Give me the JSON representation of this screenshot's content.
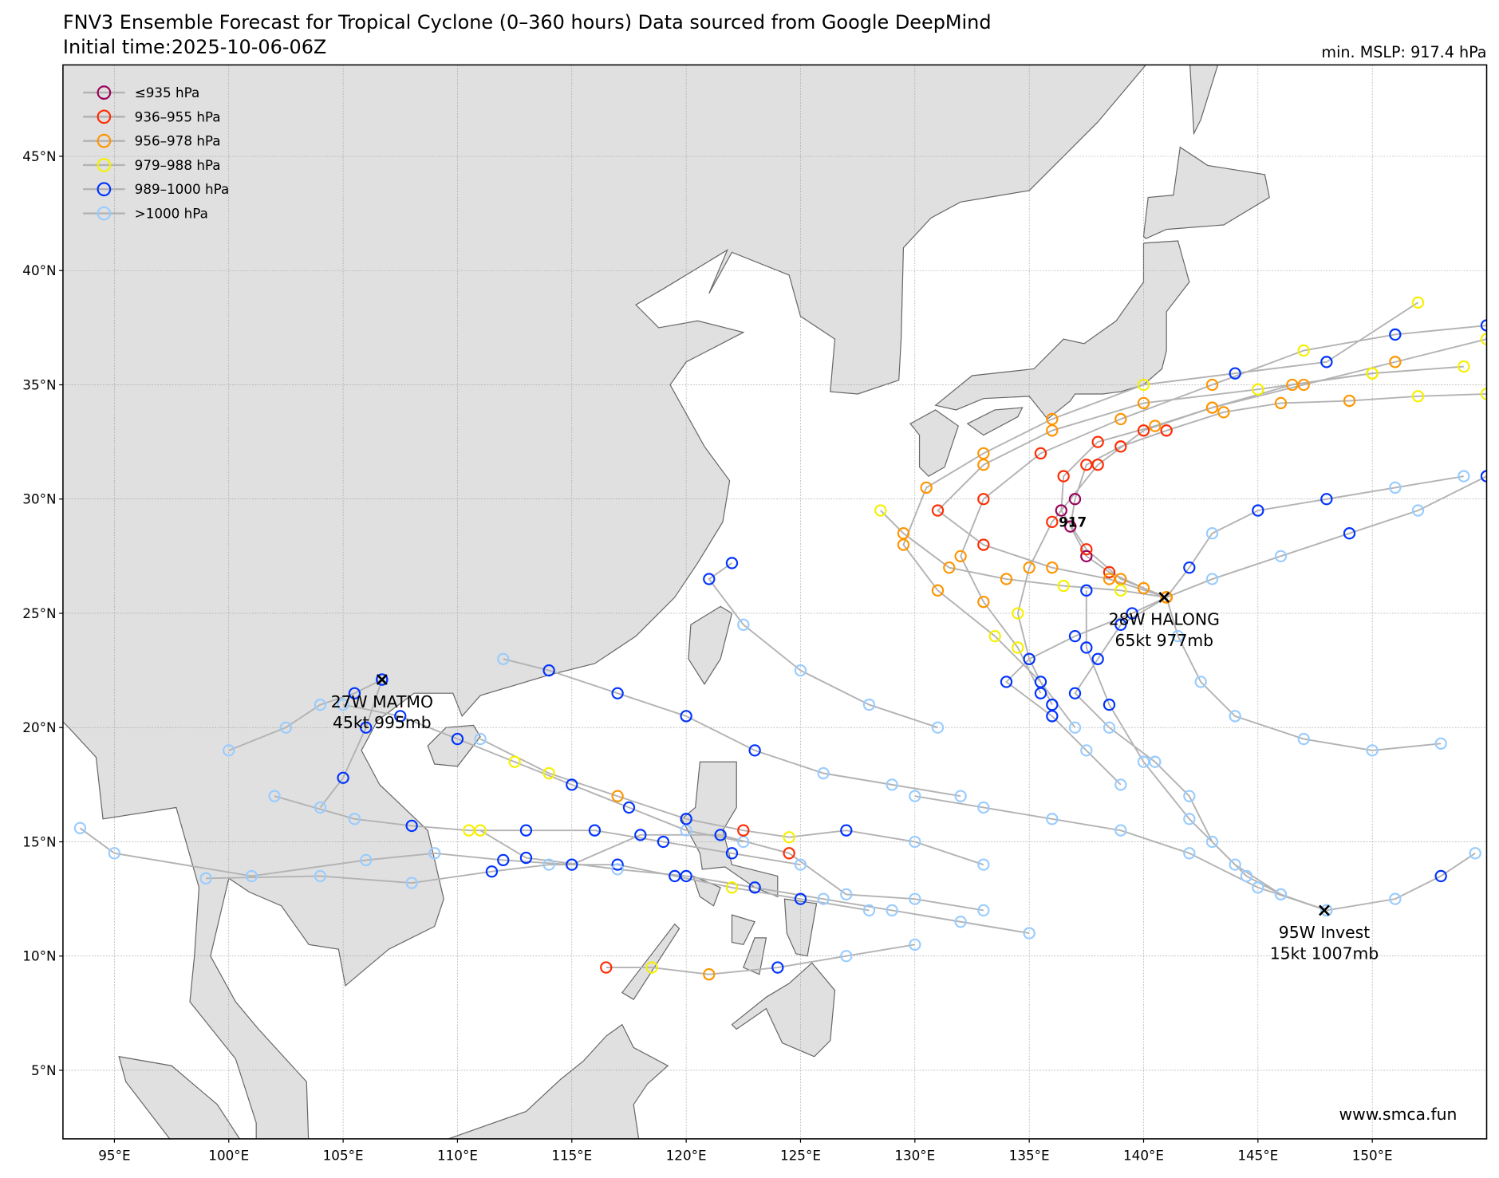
{
  "header": {
    "title": "FNV3 Ensemble Forecast for Tropical Cyclone (0–360 hours) Data sourced from Google DeepMind",
    "init_time": "Initial time:2025-10-06-06Z",
    "min_mslp": "min. MSLP: 917.4 hPa"
  },
  "watermark": "www.smca.fun",
  "chart_data": {
    "type": "map-tracks",
    "projection": "equirectangular",
    "lon_range": [
      92.75,
      155
    ],
    "lat_range": [
      2,
      49
    ],
    "grid": true,
    "legend_placement": "top-left",
    "x_ticks": [
      "95°E",
      "100°E",
      "105°E",
      "110°E",
      "115°E",
      "120°E",
      "125°E",
      "130°E",
      "135°E",
      "140°E",
      "145°E",
      "150°E"
    ],
    "x_tick_values": [
      95,
      100,
      105,
      110,
      115,
      120,
      125,
      130,
      135,
      140,
      145,
      150
    ],
    "y_ticks": [
      "5°N",
      "10°N",
      "15°N",
      "20°N",
      "25°N",
      "30°N",
      "35°N",
      "40°N",
      "45°N"
    ],
    "y_tick_values": [
      5,
      10,
      15,
      20,
      25,
      30,
      35,
      40,
      45
    ],
    "legend": [
      {
        "label": "≤935 hPa",
        "color": "#99005a",
        "max": 935
      },
      {
        "label": "936–955 hPa",
        "color": "#ff2a00",
        "max": 955
      },
      {
        "label": "956–978 hPa",
        "color": "#ff9500",
        "max": 978
      },
      {
        "label": "979–988 hPa",
        "color": "#f5f000",
        "max": 988
      },
      {
        "label": "989–1000 hPa",
        "color": "#0033ff",
        "max": 1000
      },
      {
        "label": ">1000 hPa",
        "color": "#99ccff",
        "max": 9999
      }
    ],
    "track_color": "#b3b3b3",
    "min_pressure_label": {
      "text": "917",
      "lon": 136.9,
      "lat": 29.0
    },
    "storms": [
      {
        "name": "27W MATMO",
        "info": "45kt 995mb",
        "lon": 106.7,
        "lat": 22.1
      },
      {
        "name": "28W HALONG",
        "info": "65kt 977mb",
        "lon": 140.9,
        "lat": 25.7
      },
      {
        "name": "95W Invest",
        "info": "15kt 1007mb",
        "lon": 147.9,
        "lat": 12.0
      }
    ],
    "tracks": [
      [
        [
          141,
          25.7,
          977
        ],
        [
          140,
          26.1,
          965
        ],
        [
          138.5,
          26.8,
          950
        ],
        [
          137.5,
          27.5,
          935
        ],
        [
          136.8,
          28.8,
          920
        ],
        [
          137,
          30,
          925
        ],
        [
          137.5,
          31.5,
          940
        ],
        [
          139,
          32.3,
          950
        ],
        [
          141,
          33,
          955
        ],
        [
          143.5,
          33.8,
          965
        ],
        [
          146,
          34.2,
          970
        ],
        [
          149,
          34.3,
          975
        ],
        [
          152,
          34.5,
          980
        ],
        [
          155,
          34.6,
          985
        ]
      ],
      [
        [
          141,
          25.7,
          977
        ],
        [
          139,
          26.5,
          960
        ],
        [
          137.5,
          27.8,
          940
        ],
        [
          136.4,
          29.5,
          930
        ],
        [
          136.5,
          31,
          940
        ],
        [
          138,
          32.5,
          950
        ],
        [
          140.5,
          33.2,
          958
        ],
        [
          143,
          34,
          968
        ],
        [
          146.5,
          35,
          975
        ],
        [
          150,
          35.5,
          980
        ],
        [
          154,
          35.8,
          985
        ]
      ],
      [
        [
          141,
          25.7,
          977
        ],
        [
          138.5,
          26.5,
          970
        ],
        [
          136,
          27,
          960
        ],
        [
          133,
          28,
          950
        ],
        [
          131,
          29.5,
          955
        ],
        [
          133,
          31.5,
          965
        ],
        [
          136,
          33,
          972
        ],
        [
          140,
          34.2,
          978
        ],
        [
          145,
          34.8,
          983
        ],
        [
          150,
          35.5,
          988
        ]
      ],
      [
        [
          141,
          25.7,
          977
        ],
        [
          139,
          26,
          985
        ],
        [
          136.5,
          26.2,
          980
        ],
        [
          134,
          26.5,
          970
        ],
        [
          131.5,
          27,
          965
        ],
        [
          129.5,
          28.5,
          975
        ],
        [
          128.5,
          29.5,
          985
        ]
      ],
      [
        [
          141,
          25.7,
          977
        ],
        [
          139,
          24.5,
          992
        ],
        [
          138,
          23,
          996
        ],
        [
          137,
          21.5,
          998
        ],
        [
          138.5,
          20,
          1002
        ],
        [
          140.5,
          18.5,
          1004
        ],
        [
          142,
          17,
          1006
        ],
        [
          143,
          15,
          1007
        ],
        [
          144.5,
          13.5,
          1008
        ],
        [
          146,
          12.7,
          1008
        ]
      ],
      [
        [
          141,
          25.7,
          977
        ],
        [
          139.5,
          25,
          994
        ],
        [
          137,
          24,
          990
        ],
        [
          135,
          23,
          985
        ],
        [
          134,
          22,
          993
        ],
        [
          136,
          20.5,
          997
        ],
        [
          137.5,
          19,
          1003
        ],
        [
          139,
          17.5,
          1005
        ]
      ],
      [
        [
          141,
          25.7,
          977
        ],
        [
          142,
          27,
          996
        ],
        [
          143,
          28.5,
          1002
        ],
        [
          145,
          29.5,
          995
        ],
        [
          148,
          30,
          1000
        ],
        [
          151,
          30.5,
          1003
        ],
        [
          154,
          31,
          1004
        ]
      ],
      [
        [
          141,
          25.7,
          977
        ],
        [
          143,
          26.5,
          1002
        ],
        [
          146,
          27.5,
          1003
        ],
        [
          149,
          28.5,
          994
        ],
        [
          152,
          29.5,
          1003
        ],
        [
          155,
          31,
          1000
        ]
      ],
      [
        [
          141,
          25.7,
          977
        ],
        [
          141.5,
          24,
          1004
        ],
        [
          142.5,
          22,
          1003
        ],
        [
          144,
          20.5,
          1003
        ],
        [
          147,
          19.5,
          1004
        ],
        [
          150,
          19,
          1005
        ],
        [
          153,
          19.3,
          1005
        ]
      ],
      [
        [
          148,
          12,
          1007
        ],
        [
          146,
          12.7,
          1006
        ],
        [
          144,
          14,
          1004
        ],
        [
          142,
          16,
          1003
        ],
        [
          140,
          18.5,
          1002
        ],
        [
          138.5,
          21,
          998
        ],
        [
          137.5,
          23.5,
          996
        ],
        [
          137.5,
          26,
          994
        ]
      ],
      [
        [
          148,
          12,
          1007
        ],
        [
          145,
          13,
          1005
        ],
        [
          142,
          14.5,
          1003
        ],
        [
          139,
          15.5,
          1004
        ],
        [
          136,
          16,
          1005
        ],
        [
          133,
          16.5,
          1006
        ],
        [
          130,
          17,
          1007
        ]
      ],
      [
        [
          148,
          12,
          1007
        ],
        [
          151,
          12.5,
          1008
        ],
        [
          153,
          13.5,
          996
        ],
        [
          154.5,
          14.5,
          1002
        ]
      ],
      [
        [
          106.7,
          22.1,
          995
        ],
        [
          105.5,
          21.5,
          1000
        ],
        [
          104,
          21,
          1003
        ],
        [
          102.5,
          20,
          1005
        ],
        [
          100,
          19,
          1007
        ]
      ],
      [
        [
          106.7,
          22.1,
          995
        ],
        [
          106,
          20,
          997
        ],
        [
          105,
          17.8,
          998
        ],
        [
          104,
          16.5,
          1004
        ]
      ],
      [
        [
          122.5,
          15,
          1004
        ],
        [
          120,
          15.5,
          1002
        ],
        [
          117.5,
          16.5,
          999
        ],
        [
          115,
          17.5,
          996
        ],
        [
          112.5,
          18.5,
          985
        ],
        [
          110,
          19.5,
          996
        ],
        [
          107.5,
          20.5,
          999
        ],
        [
          105,
          21,
          1003
        ]
      ],
      [
        [
          125,
          14,
          1003
        ],
        [
          122,
          14.5,
          998
        ],
        [
          119,
          15,
          990
        ],
        [
          116,
          15.5,
          994
        ],
        [
          113,
          15.5,
          997
        ],
        [
          110.5,
          15.5,
          985
        ],
        [
          108,
          15.7,
          996
        ],
        [
          105.5,
          16,
          1004
        ],
        [
          102,
          17,
          1006
        ]
      ],
      [
        [
          128,
          12,
          1004
        ],
        [
          125,
          12.5,
          999
        ],
        [
          122,
          13,
          985
        ],
        [
          119.5,
          13.5,
          996
        ],
        [
          117,
          14,
          997
        ],
        [
          114,
          14,
          1001
        ],
        [
          111.5,
          13.7,
          996
        ],
        [
          108,
          13.2,
          1004
        ],
        [
          104,
          13.5,
          1006
        ],
        [
          99,
          13.4,
          1008
        ]
      ],
      [
        [
          130,
          10.5,
          1004
        ],
        [
          127,
          10,
          1001
        ],
        [
          124,
          9.5,
          996
        ],
        [
          121,
          9.2,
          978
        ],
        [
          118.5,
          9.5,
          980
        ],
        [
          116.5,
          9.5,
          951
        ]
      ],
      [
        [
          133,
          14,
          1003
        ],
        [
          130,
          15,
          1001
        ],
        [
          127,
          15.5,
          997
        ],
        [
          124.5,
          15.2,
          985
        ],
        [
          122.5,
          15.5,
          950
        ],
        [
          120,
          16,
          996
        ],
        [
          117,
          17,
          975
        ],
        [
          114,
          18,
          985
        ],
        [
          111,
          19.5,
          1001
        ]
      ],
      [
        [
          132,
          17,
          1004
        ],
        [
          129,
          17.5,
          1003
        ],
        [
          126,
          18,
          1002
        ],
        [
          123,
          19,
          998
        ],
        [
          120,
          20.5,
          996
        ],
        [
          117,
          21.5,
          998
        ],
        [
          114,
          22.5,
          997
        ],
        [
          112,
          23,
          1003
        ]
      ],
      [
        [
          133,
          12,
          1005
        ],
        [
          130,
          12.5,
          1004
        ],
        [
          127,
          12.7,
          1002
        ],
        [
          124.5,
          14.5,
          948
        ],
        [
          121.5,
          15.3,
          995
        ],
        [
          118,
          15.3,
          996
        ],
        [
          115,
          14,
          997
        ],
        [
          112,
          14.2,
          996
        ],
        [
          109,
          14.5,
          1004
        ],
        [
          106,
          14.2,
          1006
        ],
        [
          101,
          13.5,
          1007
        ],
        [
          95,
          14.5,
          1008
        ],
        [
          93.5,
          15.6,
          1008
        ]
      ],
      [
        [
          131,
          20,
          1003
        ],
        [
          128,
          21,
          1003
        ],
        [
          125,
          22.5,
          1002
        ],
        [
          122.5,
          24.5,
          1002
        ],
        [
          121,
          26.5,
          997
        ],
        [
          122,
          27.2,
          996
        ]
      ],
      [
        [
          135,
          11,
          1006
        ],
        [
          132,
          11.5,
          1005
        ],
        [
          129,
          12,
          1004
        ],
        [
          126,
          12.5,
          1003
        ],
        [
          123,
          13,
          996
        ],
        [
          120,
          13.5,
          993
        ],
        [
          117,
          13.8,
          1003
        ],
        [
          113,
          14.3,
          996
        ],
        [
          111,
          15.5,
          985
        ]
      ],
      [
        [
          136,
          21,
          998
        ],
        [
          135,
          23,
          993
        ],
        [
          134.5,
          25,
          985
        ],
        [
          135,
          27,
          970
        ],
        [
          136,
          29,
          955
        ],
        [
          138,
          31.5,
          948
        ],
        [
          140,
          33,
          952
        ],
        [
          143,
          34,
          960
        ],
        [
          147,
          35,
          970
        ],
        [
          151,
          36,
          978
        ],
        [
          155,
          37,
          985
        ]
      ],
      [
        [
          135.5,
          21.5,
          999
        ],
        [
          134.5,
          23.5,
          985
        ],
        [
          133,
          25.5,
          975
        ],
        [
          132,
          27.5,
          960
        ],
        [
          133,
          30,
          955
        ],
        [
          135.5,
          32,
          955
        ],
        [
          139,
          33.5,
          965
        ],
        [
          143,
          35,
          975
        ],
        [
          147,
          36.5,
          983
        ],
        [
          151,
          37.2,
          990
        ],
        [
          155,
          37.6,
          1000
        ]
      ],
      [
        [
          137,
          20,
          1003
        ],
        [
          135.5,
          22,
          994
        ],
        [
          133.5,
          24,
          988
        ],
        [
          131,
          26,
          975
        ],
        [
          129.5,
          28,
          970
        ],
        [
          130.5,
          30.5,
          960
        ],
        [
          133,
          32,
          965
        ],
        [
          136,
          33.5,
          975
        ],
        [
          140,
          35,
          985
        ],
        [
          144,
          35.5,
          990
        ],
        [
          148,
          36,
          999
        ],
        [
          152,
          38.6,
          985
        ]
      ]
    ]
  }
}
